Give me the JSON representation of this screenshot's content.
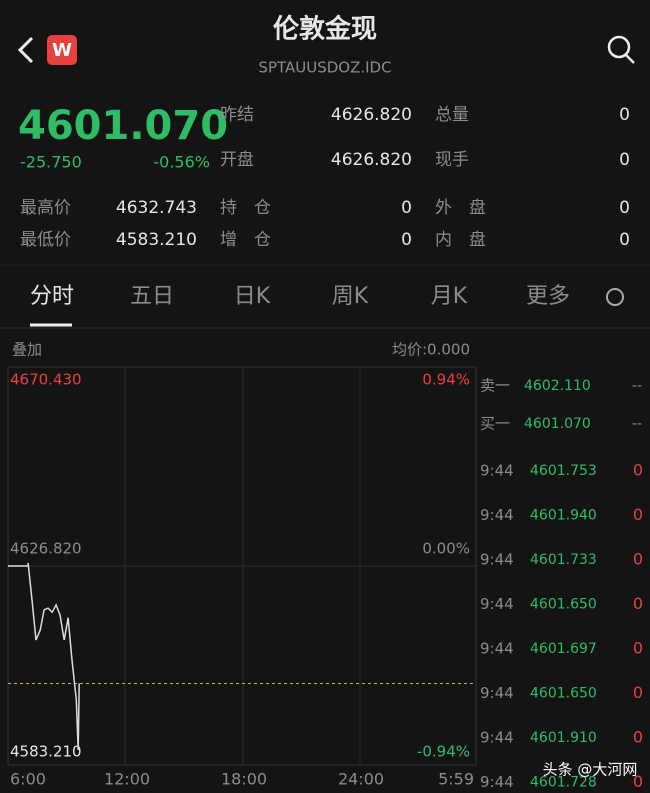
{
  "header": {
    "title": "伦敦金现",
    "code": "SPTAUUSDOZ.IDC",
    "icon": "W"
  },
  "quote": {
    "price": "4601.070",
    "change": "-25.750",
    "percent": "-0.56%"
  },
  "stats": [
    [
      {
        "label": "昨结",
        "value": "4626.820"
      },
      {
        "label": "总量",
        "value": "0"
      }
    ],
    [
      {
        "label": "开盘",
        "value": "4626.820"
      },
      {
        "label": "现手",
        "value": "0"
      }
    ],
    [
      {
        "label": "最高价",
        "value": "4632.743"
      },
      {
        "label": "持　仓",
        "value": "0"
      },
      {
        "label": "外　盘",
        "value": "0"
      }
    ],
    [
      {
        "label": "最低价",
        "value": "4583.210"
      },
      {
        "label": "增　仓",
        "value": "0"
      },
      {
        "label": "内　盘",
        "value": "0"
      }
    ]
  ],
  "tabs": [
    "分时",
    "五日",
    "日K",
    "周K",
    "月K",
    "更多"
  ],
  "chart": {
    "overlay": "叠加",
    "average": "均价:0.000",
    "top": "4670.430",
    "top_percent": "0.94%",
    "mid": "4626.820",
    "mid_percent": "0.00%",
    "bottom": "4583.210",
    "bottom_percent": "-0.94%",
    "xlabels": [
      "6:00",
      "12:00",
      "18:00",
      "24:00",
      "5:59"
    ],
    "line": {
      "x": [
        0,
        62,
        62,
        74,
        86,
        99,
        111,
        123,
        136,
        148,
        160,
        173,
        185,
        197,
        210,
        216,
        219
      ],
      "values": [
        4626.82,
        4626.82,
        4627.5,
        4619.4,
        4610.6,
        4612.8,
        4617.2,
        4617.6,
        4616.7,
        4618.3,
        4616.1,
        4610.6,
        4615.5,
        4606.2,
        4597.5,
        4586.5,
        4601.1
      ]
    },
    "current": 4601.07
  },
  "book": [
    {
      "side": "卖一",
      "price": "4602.110",
      "volume": "--"
    },
    {
      "side": "买一",
      "price": "4601.070",
      "volume": "--"
    }
  ],
  "trades": [
    {
      "time": "9:44",
      "price": "4601.753",
      "volume": "0"
    },
    {
      "time": "9:44",
      "price": "4601.940",
      "volume": "0"
    },
    {
      "time": "9:44",
      "price": "4601.733",
      "volume": "0"
    },
    {
      "time": "9:44",
      "price": "4601.650",
      "volume": "0"
    },
    {
      "time": "9:44",
      "price": "4601.697",
      "volume": "0"
    },
    {
      "time": "9:44",
      "price": "4601.650",
      "volume": "0"
    },
    {
      "time": "9:44",
      "price": "4601.910",
      "volume": "0"
    },
    {
      "time": "9:44",
      "price": "4601.728",
      "volume": "0"
    }
  ],
  "watermark": "头条 @大河网"
}
